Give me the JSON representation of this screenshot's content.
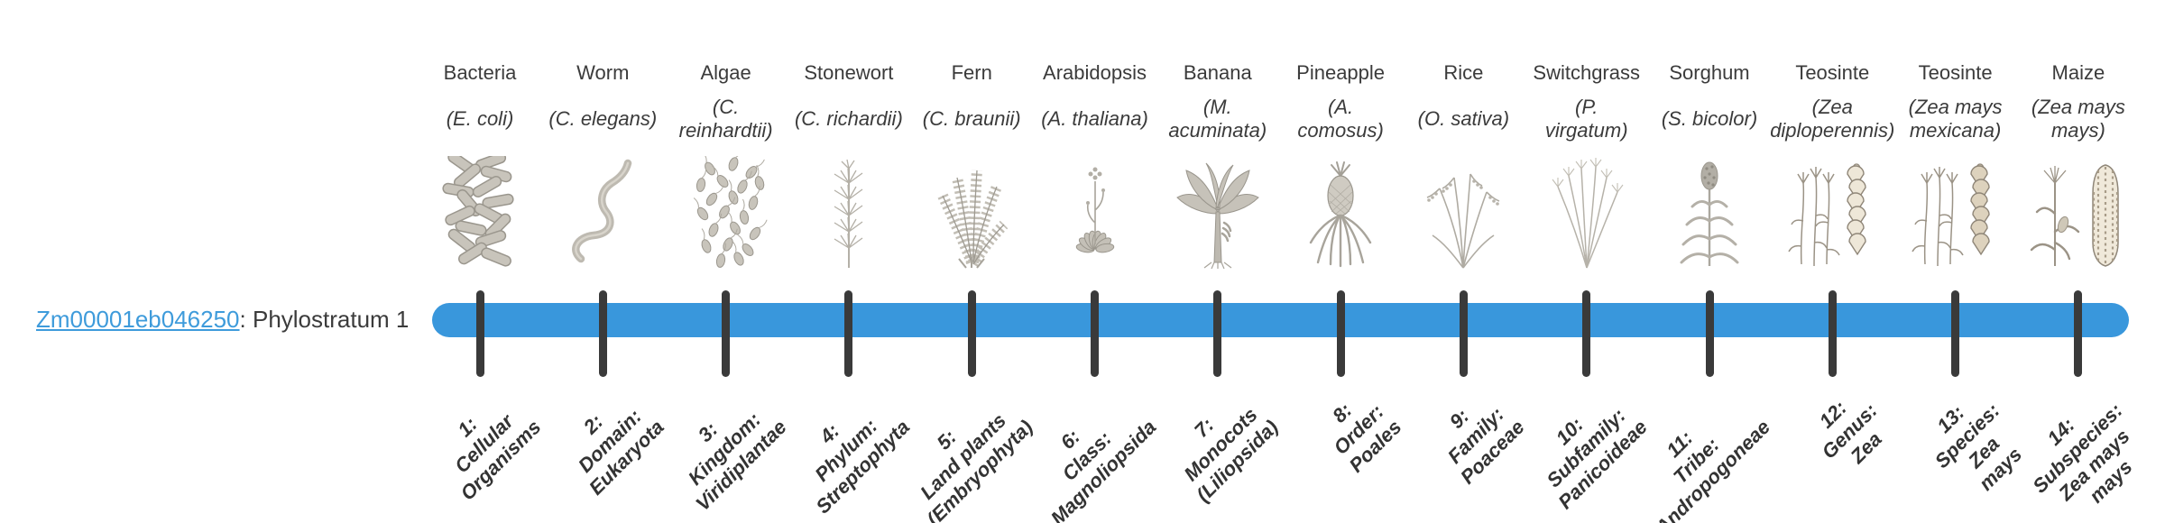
{
  "gene": {
    "id": "Zm00001eb046250",
    "label_suffix": ": Phylostratum 1"
  },
  "colors": {
    "bar_blue": "#3997dc",
    "tick_dark": "#3a3a3a",
    "link_blue": "#3e9bdb",
    "text_dark": "#3b3b3b"
  },
  "strata": [
    {
      "num": 1,
      "organism": "Bacteria",
      "species_lines": [
        "(E. coli)"
      ],
      "rank_lines": [
        "1:",
        "Cellular",
        "Organisms"
      ],
      "icon": "bacteria-icon"
    },
    {
      "num": 2,
      "organism": "Worm",
      "species_lines": [
        "(C. elegans)"
      ],
      "rank_lines": [
        "2:",
        "Domain:",
        "Eukaryota"
      ],
      "icon": "worm-icon"
    },
    {
      "num": 3,
      "organism": "Algae",
      "species_lines": [
        "(C.",
        "reinhardtii)"
      ],
      "rank_lines": [
        "3:",
        "Kingdom:",
        "Viridiplantae"
      ],
      "icon": "algae-icon"
    },
    {
      "num": 4,
      "organism": "Stonewort",
      "species_lines": [
        "(C. richardii)"
      ],
      "rank_lines": [
        "4:",
        "Phylum:",
        "Streptophyta"
      ],
      "icon": "stonewort-icon"
    },
    {
      "num": 5,
      "organism": "Fern",
      "species_lines": [
        "(C. braunii)"
      ],
      "rank_lines": [
        "5:",
        "Land plants",
        "(Embryophyta)"
      ],
      "icon": "fern-icon"
    },
    {
      "num": 6,
      "organism": "Arabidopsis",
      "species_lines": [
        "(A. thaliana)"
      ],
      "rank_lines": [
        "6:",
        "Class:",
        "Magnoliopsida"
      ],
      "icon": "arabidopsis-icon"
    },
    {
      "num": 7,
      "organism": "Banana",
      "species_lines": [
        "(M.",
        "acuminata)"
      ],
      "rank_lines": [
        "7:",
        "Monocots",
        "(Liliopsida)"
      ],
      "icon": "banana-icon"
    },
    {
      "num": 8,
      "organism": "Pineapple",
      "species_lines": [
        "(A.",
        "comosus)"
      ],
      "rank_lines": [
        "8:",
        "Order:",
        "Poales"
      ],
      "icon": "pineapple-icon"
    },
    {
      "num": 9,
      "organism": "Rice",
      "species_lines": [
        "(O. sativa)"
      ],
      "rank_lines": [
        "9:",
        "Family:",
        "Poaceae"
      ],
      "icon": "rice-icon"
    },
    {
      "num": 10,
      "organism": "Switchgrass",
      "species_lines": [
        "(P.",
        "virgatum)"
      ],
      "rank_lines": [
        "10:",
        "Subfamily:",
        "Panicoideae"
      ],
      "icon": "switchgrass-icon"
    },
    {
      "num": 11,
      "organism": "Sorghum",
      "species_lines": [
        "(S. bicolor)"
      ],
      "rank_lines": [
        "11:",
        "Tribe:",
        "Andropogoneae"
      ],
      "icon": "sorghum-icon"
    },
    {
      "num": 12,
      "organism": "Teosinte",
      "species_lines": [
        "(Zea",
        "diploperennis)"
      ],
      "rank_lines": [
        "12:",
        "Genus:",
        "Zea"
      ],
      "icon": "teosinte-diploperennis-icon"
    },
    {
      "num": 13,
      "organism": "Teosinte",
      "species_lines": [
        "(Zea mays",
        "mexicana)"
      ],
      "rank_lines": [
        "13:",
        "Species:",
        "Zea",
        "mays"
      ],
      "icon": "teosinte-mexicana-icon"
    },
    {
      "num": 14,
      "organism": "Maize",
      "species_lines": [
        "(Zea mays",
        "mays)"
      ],
      "rank_lines": [
        "14:",
        "Subspecies:",
        "Zea mays",
        "mays"
      ],
      "icon": "maize-icon"
    }
  ]
}
